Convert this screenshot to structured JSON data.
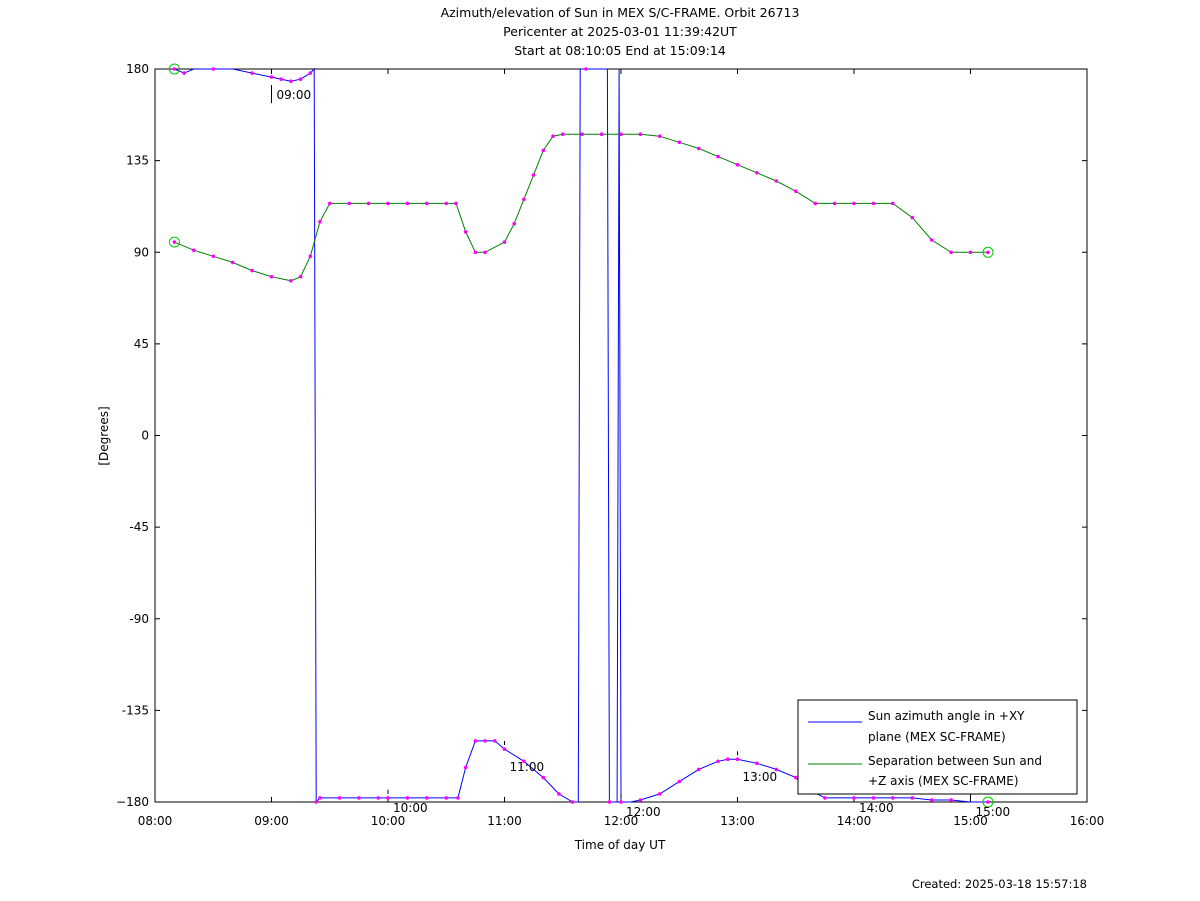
{
  "chart_data": {
    "type": "line",
    "title_lines": [
      "Azimuth/elevation of Sun in MEX S/C-FRAME.  Orbit 26713",
      "Pericenter at 2025-03-01 11:39:42UT",
      "Start at 08:10:05 End at 15:09:14"
    ],
    "xlabel": "Time of day UT",
    "ylabel": "[Degrees]",
    "xlim_hours": [
      8,
      16
    ],
    "ylim": [
      -180,
      180
    ],
    "x_ticks": [
      8,
      9,
      10,
      11,
      12,
      13,
      14,
      15,
      16
    ],
    "x_tick_labels": [
      "08:00",
      "09:00",
      "10:00",
      "11:00",
      "12:00",
      "13:00",
      "14:00",
      "15:00",
      "16:00"
    ],
    "y_ticks": [
      180,
      135,
      90,
      45,
      0,
      -45,
      -90,
      -135,
      -180
    ],
    "y_tick_labels": [
      "180",
      "135",
      "90",
      "45",
      "0",
      "-45",
      "-90",
      "-135",
      "−180"
    ],
    "grid": false,
    "legend_position": "bottom-right",
    "series": [
      {
        "name": "Sun azimuth angle in +XY plane (MEX SC-FRAME)",
        "legend_lines": [
          "Sun azimuth angle in +XY",
          "plane (MEX SC-FRAME)"
        ],
        "color": "#0000ff",
        "x": [
          "08:10",
          "08:15",
          "08:20",
          "08:30",
          "08:40",
          "08:50",
          "09:00",
          "09:05",
          "09:10",
          "09:15",
          "09:20",
          "09:22",
          "09:23",
          "09:25",
          "09:35",
          "09:45",
          "09:55",
          "10:00",
          "10:10",
          "10:20",
          "10:30",
          "10:36",
          "10:40",
          "10:45",
          "10:50",
          "10:55",
          "11:00",
          "11:10",
          "11:20",
          "11:28",
          "11:35",
          "11:38",
          "11:39",
          "11:42",
          "11:50",
          "11:53",
          "11:54",
          "11:58",
          "11:59",
          "12:00",
          "12:05",
          "12:10",
          "12:20",
          "12:30",
          "12:40",
          "12:50",
          "12:55",
          "13:00",
          "13:10",
          "13:20",
          "13:30",
          "13:35",
          "13:45",
          "14:00",
          "14:10",
          "14:20",
          "14:30",
          "14:40",
          "14:50",
          "15:00",
          "15:09"
        ],
        "values": [
          180,
          178,
          180,
          180,
          180,
          178,
          176,
          175,
          174,
          175,
          178,
          180,
          -180,
          -178,
          -178,
          -178,
          -178,
          -178,
          -178,
          -178,
          -178,
          -178,
          -163,
          -150,
          -150,
          -150,
          -154,
          -160,
          -168,
          -176,
          -180,
          -180,
          180,
          180,
          180,
          180,
          -180,
          -180,
          180,
          -180,
          -180,
          -179,
          -176,
          -170,
          -164,
          -160,
          -159,
          -159,
          -161,
          -164,
          -168,
          -173,
          -178,
          -178,
          -178,
          -178,
          -178,
          -179,
          -179,
          -180,
          -180
        ]
      },
      {
        "name": "Separation between Sun and +Z axis (MEX SC-FRAME)",
        "legend_lines": [
          "Separation between Sun and",
          "+Z axis (MEX SC-FRAME)"
        ],
        "color": "#008000",
        "x": [
          "08:10",
          "08:20",
          "08:30",
          "08:40",
          "08:50",
          "09:00",
          "09:10",
          "09:15",
          "09:20",
          "09:25",
          "09:30",
          "09:40",
          "09:50",
          "10:00",
          "10:10",
          "10:20",
          "10:30",
          "10:35",
          "10:40",
          "10:45",
          "10:50",
          "11:00",
          "11:05",
          "11:10",
          "11:15",
          "11:20",
          "11:25",
          "11:30",
          "11:40",
          "11:50",
          "12:00",
          "12:10",
          "12:20",
          "12:30",
          "12:40",
          "12:50",
          "13:00",
          "13:10",
          "13:20",
          "13:30",
          "13:40",
          "13:50",
          "14:00",
          "14:10",
          "14:20",
          "14:30",
          "14:40",
          "14:50",
          "15:00",
          "15:09"
        ],
        "values": [
          95,
          91,
          88,
          85,
          81,
          78,
          76,
          78,
          88,
          105,
          114,
          114,
          114,
          114,
          114,
          114,
          114,
          114,
          100,
          90,
          90,
          95,
          104,
          116,
          128,
          140,
          147,
          148,
          148,
          148,
          148,
          148,
          147,
          144,
          141,
          137,
          133,
          129,
          125,
          120,
          114,
          114,
          114,
          114,
          114,
          107,
          96,
          90,
          90,
          90
        ]
      }
    ],
    "time_markers": [
      "09:00",
      "10:00",
      "11:00",
      "12:00",
      "13:00",
      "14:00",
      "15:00"
    ]
  },
  "footer": {
    "created": "Created: 2025-03-18 15:57:18"
  }
}
